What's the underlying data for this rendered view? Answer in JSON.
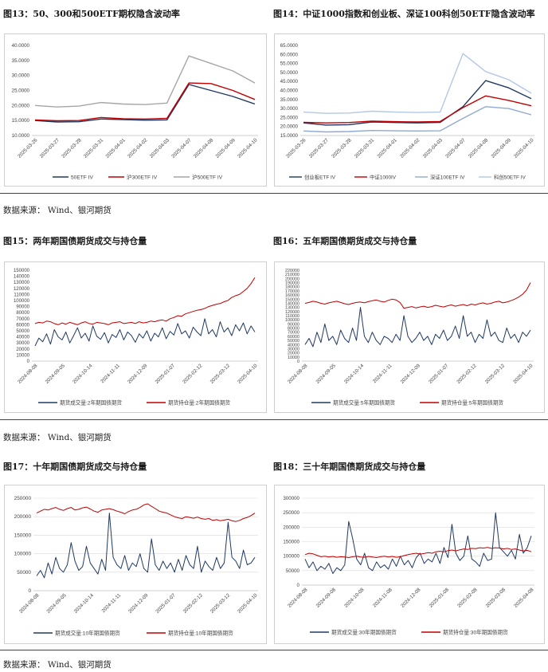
{
  "titles": {
    "f13": "图13：50、300和500ETF期权隐含波动率",
    "f14": "图14：中证1000指数和创业板、深证100科创50ETF隐含波动率",
    "f15": "图15：两年期国债期货成交与持仓量",
    "f16": "图16：五年期国债期货成交与持仓量",
    "f17": "图17：十年期国债期货成交与持仓量",
    "f18": "图18：三十年期国债期货成交与持仓量"
  },
  "sources": {
    "s1": "数据来源：  Wind、银河期货",
    "s2": "数据来源：  Wind、银河期货",
    "s3": "数据来源：  Wind、银河期货"
  },
  "colors": {
    "navy": "#1f3864",
    "red": "#c00000",
    "gray": "#a6a6a6",
    "lightblue": "#8fa9d6",
    "verylightblue": "#b4c7e7",
    "axis": "#595959",
    "grid": "#d9d9d9"
  },
  "chart_data": [
    {
      "id": "f13",
      "type": "line",
      "ylim": [
        10,
        40
      ],
      "yticks": [
        "10.0000",
        "15.0000",
        "20.0000",
        "25.0000",
        "30.0000",
        "35.0000",
        "40.0000"
      ],
      "categories": [
        "2025-03-26",
        "2025-03-27",
        "2025-03-28",
        "2025-03-31",
        "2025-04-01",
        "2025-04-02",
        "2025-04-03",
        "2025-04-07",
        "2025-04-08",
        "2025-04-09",
        "2025-04-10"
      ],
      "series": [
        {
          "name": "50ETF IV",
          "color": "#1f3864",
          "values": [
            15.0,
            14.5,
            14.6,
            15.5,
            15.3,
            15.1,
            15.2,
            27.0,
            25.0,
            23.0,
            20.5
          ]
        },
        {
          "name": "沪300ETF IV",
          "color": "#c00000",
          "values": [
            15.2,
            14.9,
            15.0,
            16.0,
            15.6,
            15.5,
            15.7,
            27.5,
            27.3,
            25.0,
            22.0
          ]
        },
        {
          "name": "沪500ETF IV",
          "color": "#a6a6a6",
          "values": [
            20.0,
            19.5,
            19.8,
            21.0,
            20.5,
            20.3,
            20.8,
            36.5,
            34.0,
            31.5,
            27.5
          ]
        }
      ]
    },
    {
      "id": "f14",
      "type": "line",
      "ylim": [
        15,
        65
      ],
      "yticks": [
        "15.0000",
        "20.0000",
        "25.0000",
        "30.0000",
        "35.0000",
        "40.0000",
        "45.0000",
        "50.0000",
        "55.0000",
        "60.0000",
        "65.0000"
      ],
      "categories": [
        "2025-03-26",
        "2025-03-27",
        "2025-03-28",
        "2025-03-31",
        "2025-04-01",
        "2025-04-02",
        "2025-04-03",
        "2025-04-07",
        "2025-04-08",
        "2025-04-09",
        "2025-04-10"
      ],
      "series": [
        {
          "name": "创业板ETF IV",
          "color": "#1f3864",
          "values": [
            22.0,
            20.8,
            21.0,
            22.5,
            22.2,
            22.0,
            22.3,
            31.0,
            45.5,
            41.5,
            35.5
          ]
        },
        {
          "name": "中证1000IV",
          "color": "#c00000",
          "values": [
            22.3,
            22.0,
            22.2,
            23.0,
            22.7,
            22.5,
            22.8,
            30.5,
            37.0,
            34.5,
            31.5
          ]
        },
        {
          "name": "深证100ETF IV",
          "color": "#8fa9d6",
          "values": [
            17.5,
            17.0,
            17.2,
            17.8,
            17.6,
            17.5,
            17.6,
            24.5,
            31.0,
            30.0,
            26.5
          ]
        },
        {
          "name": "科创50ETF IV",
          "color": "#b4c7e7",
          "values": [
            28.0,
            27.3,
            27.5,
            28.5,
            28.0,
            27.8,
            28.0,
            60.5,
            50.5,
            46.0,
            38.5
          ]
        }
      ]
    },
    {
      "id": "f15",
      "type": "line",
      "ylim": [
        0,
        150000
      ],
      "yticks": [
        "0",
        "10000",
        "20000",
        "30000",
        "40000",
        "50000",
        "60000",
        "70000",
        "80000",
        "90000",
        "100000",
        "110000",
        "120000",
        "130000",
        "140000",
        "150000"
      ],
      "xticks": [
        "2024-08-08",
        "2024-09-05",
        "2024-10-14",
        "2024-11-11",
        "2024-12-09",
        "2025-01-07",
        "2025-02-12",
        "2025-03-12",
        "2025-04-10"
      ],
      "series": [
        {
          "name": "期货成交量:2年期国债期货",
          "color": "#1f3864",
          "values": [
            25000,
            38000,
            32000,
            45000,
            28000,
            52000,
            40000,
            35000,
            48000,
            30000,
            42000,
            55000,
            38000,
            46000,
            33000,
            58000,
            41000,
            36000,
            47000,
            30000,
            44000,
            39000,
            52000,
            35000,
            48000,
            42000,
            31000,
            45000,
            38000,
            50000,
            33000,
            46000,
            40000,
            55000,
            37000,
            49000,
            43000,
            62000,
            45000,
            50000,
            38000,
            56000,
            48000,
            42000,
            70000,
            45000,
            52000,
            40000,
            65000,
            48000,
            55000,
            42000,
            60000,
            50000,
            63000,
            45000,
            58000,
            48000
          ]
        },
        {
          "name": "期货持仓量:2年期国债期货",
          "color": "#c00000",
          "values": [
            62000,
            64000,
            63000,
            66000,
            65000,
            62000,
            60000,
            63000,
            61000,
            64000,
            62000,
            60000,
            63000,
            65000,
            62000,
            61000,
            64000,
            63000,
            62000,
            60000,
            63000,
            64000,
            65000,
            62000,
            63000,
            64000,
            62000,
            65000,
            63000,
            64000,
            66000,
            65000,
            67000,
            68000,
            66000,
            70000,
            72000,
            75000,
            74000,
            78000,
            80000,
            82000,
            84000,
            85000,
            87000,
            90000,
            92000,
            94000,
            95000,
            98000,
            100000,
            105000,
            108000,
            110000,
            115000,
            120000,
            128000,
            138000
          ]
        }
      ]
    },
    {
      "id": "f16",
      "type": "line",
      "ylim": [
        0,
        220000
      ],
      "yticks": [
        "0",
        "10000",
        "20000",
        "30000",
        "40000",
        "50000",
        "60000",
        "70000",
        "80000",
        "90000",
        "100000",
        "110000",
        "120000",
        "130000",
        "140000",
        "150000",
        "160000",
        "170000",
        "180000",
        "190000",
        "200000",
        "210000",
        "220000"
      ],
      "xticks": [
        "2024-08-08",
        "2024-09-05",
        "2024-10-14",
        "2024-11-11",
        "2024-12-09",
        "2025-01-07",
        "2025-02-12",
        "2025-03-12",
        "2025-04-10"
      ],
      "series": [
        {
          "name": "期货成交量:5年期国债期货",
          "color": "#1f3864",
          "values": [
            40000,
            55000,
            35000,
            70000,
            45000,
            90000,
            50000,
            60000,
            40000,
            75000,
            55000,
            45000,
            80000,
            50000,
            130000,
            60000,
            45000,
            70000,
            50000,
            40000,
            60000,
            55000,
            45000,
            65000,
            50000,
            110000,
            60000,
            45000,
            55000,
            70000,
            50000,
            60000,
            40000,
            65000,
            55000,
            75000,
            50000,
            60000,
            85000,
            55000,
            110000,
            60000,
            70000,
            45000,
            65000,
            55000,
            100000,
            60000,
            70000,
            50000,
            45000,
            80000,
            55000,
            65000,
            45000,
            70000,
            60000,
            75000
          ]
        },
        {
          "name": "期货持仓量:5年期国债期货",
          "color": "#c00000",
          "values": [
            140000,
            142000,
            145000,
            143000,
            140000,
            138000,
            141000,
            143000,
            145000,
            142000,
            139000,
            137000,
            140000,
            142000,
            143000,
            141000,
            144000,
            146000,
            148000,
            145000,
            143000,
            147000,
            150000,
            148000,
            142000,
            128000,
            130000,
            132000,
            129000,
            131000,
            133000,
            130000,
            132000,
            135000,
            133000,
            131000,
            134000,
            136000,
            133000,
            135000,
            137000,
            134000,
            138000,
            136000,
            139000,
            141000,
            138000,
            140000,
            143000,
            145000,
            141000,
            143000,
            146000,
            150000,
            155000,
            162000,
            172000,
            190000
          ]
        }
      ]
    },
    {
      "id": "f17",
      "type": "line",
      "ylim": [
        0,
        250000
      ],
      "yticks": [
        "0",
        "50000",
        "100000",
        "150000",
        "200000",
        "250000"
      ],
      "xticks": [
        "2024-08-08",
        "2024-09-05",
        "2024-10-14",
        "2024-11-11",
        "2024-12-09",
        "2025-01-07",
        "2025-02-12",
        "2025-03-12",
        "2025-04-10"
      ],
      "series": [
        {
          "name": "期货成交量:10年期国债期货",
          "color": "#1f3864",
          "values": [
            40000,
            55000,
            35000,
            75000,
            45000,
            90000,
            60000,
            50000,
            70000,
            130000,
            80000,
            55000,
            65000,
            120000,
            75000,
            60000,
            45000,
            85000,
            55000,
            210000,
            90000,
            70000,
            60000,
            95000,
            55000,
            75000,
            65000,
            100000,
            60000,
            50000,
            140000,
            70000,
            55000,
            80000,
            60000,
            75000,
            50000,
            85000,
            55000,
            95000,
            70000,
            60000,
            120000,
            50000,
            80000,
            65000,
            55000,
            90000,
            60000,
            75000,
            185000,
            90000,
            80000,
            60000,
            110000,
            70000,
            75000,
            90000
          ]
        },
        {
          "name": "期货持仓量:10年期国债期货",
          "color": "#c00000",
          "values": [
            210000,
            215000,
            220000,
            218000,
            222000,
            225000,
            220000,
            217000,
            222000,
            225000,
            218000,
            220000,
            224000,
            226000,
            221000,
            215000,
            212000,
            218000,
            220000,
            222000,
            219000,
            215000,
            212000,
            208000,
            214000,
            218000,
            220000,
            225000,
            232000,
            235000,
            228000,
            222000,
            215000,
            212000,
            210000,
            205000,
            200000,
            197000,
            195000,
            200000,
            198000,
            196000,
            199000,
            195000,
            193000,
            195000,
            190000,
            192000,
            189000,
            191000,
            193000,
            189000,
            187000,
            190000,
            195000,
            198000,
            203000,
            210000
          ]
        }
      ]
    },
    {
      "id": "f18",
      "type": "line",
      "ylim": [
        0,
        300000
      ],
      "yticks": [
        "0",
        "50000",
        "100000",
        "150000",
        "200000",
        "250000",
        "300000"
      ],
      "xticks": [
        "2024-08-08",
        "2024-09-08",
        "2024-10-08",
        "2024-11-08",
        "2024-12-08",
        "2025-01-08",
        "2025-02-08",
        "2025-03-08",
        "2025-04-08"
      ],
      "series": [
        {
          "name": "期货成交量:30年期国债期货",
          "color": "#1f3864",
          "values": [
            90000,
            60000,
            80000,
            50000,
            65000,
            55000,
            75000,
            40000,
            60000,
            50000,
            70000,
            220000,
            160000,
            90000,
            70000,
            110000,
            60000,
            50000,
            80000,
            60000,
            70000,
            55000,
            90000,
            65000,
            100000,
            70000,
            85000,
            60000,
            95000,
            110000,
            75000,
            90000,
            80000,
            110000,
            75000,
            130000,
            95000,
            210000,
            110000,
            85000,
            100000,
            170000,
            90000,
            80000,
            65000,
            110000,
            85000,
            90000,
            250000,
            130000,
            115000,
            100000,
            120000,
            90000,
            175000,
            110000,
            130000,
            170000
          ]
        },
        {
          "name": "期货持仓量:30年期国债期货",
          "color": "#c00000",
          "values": [
            105000,
            110000,
            108000,
            103000,
            98000,
            100000,
            97000,
            99000,
            96000,
            98000,
            97000,
            95000,
            98000,
            100000,
            97000,
            96000,
            99000,
            97000,
            95000,
            98000,
            100000,
            97000,
            99000,
            96000,
            98000,
            102000,
            105000,
            108000,
            110000,
            107000,
            109000,
            112000,
            110000,
            115000,
            117000,
            115000,
            119000,
            121000,
            118000,
            122000,
            125000,
            123000,
            127000,
            126000,
            129000,
            128000,
            130000,
            127000,
            129000,
            128000,
            125000,
            127000,
            123000,
            125000,
            121000,
            118000,
            120000,
            115000
          ]
        }
      ]
    }
  ]
}
